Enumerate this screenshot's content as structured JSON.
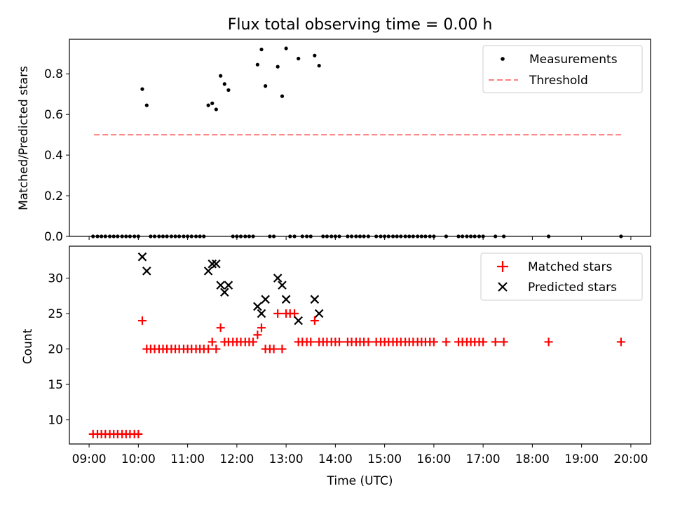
{
  "title": "Flux total observing time = 0.00 h",
  "colors": {
    "matched": "#ff0000",
    "predicted": "#000000",
    "threshold": "#ff7f7f",
    "measurement": "#000000"
  },
  "chart_data": [
    {
      "type": "scatter",
      "ylabel": "Matched/Predicted stars",
      "ylim": [
        0,
        0.97
      ],
      "yticks": [
        0.0,
        0.2,
        0.4,
        0.6,
        0.8
      ],
      "ytick_labels": [
        "0.0",
        "0.2",
        "0.4",
        "0.6",
        "0.8"
      ],
      "legend": {
        "position": "top-right",
        "measurements_label": "Measurements",
        "threshold_label": "Threshold"
      },
      "threshold": {
        "value": 0.5,
        "x_start": 9.1,
        "x_end": 19.8
      },
      "measurements": {
        "x": [
          10.08,
          10.17,
          11.42,
          11.5,
          11.58,
          11.67,
          11.75,
          11.83,
          12.42,
          12.5,
          12.58,
          12.83,
          12.92,
          13.0,
          13.25,
          13.58,
          13.67
        ],
        "y": [
          0.725,
          0.645,
          0.645,
          0.655,
          0.625,
          0.79,
          0.75,
          0.72,
          0.845,
          0.92,
          0.74,
          0.835,
          0.69,
          0.925,
          0.875,
          0.89,
          0.84
        ]
      },
      "zero_measurements_x": [
        9.08,
        9.17,
        9.25,
        9.33,
        9.42,
        9.5,
        9.58,
        9.67,
        9.75,
        9.83,
        9.92,
        10.0,
        10.25,
        10.33,
        10.42,
        10.5,
        10.58,
        10.67,
        10.75,
        10.83,
        10.92,
        11.0,
        11.08,
        11.17,
        11.25,
        11.33,
        11.92,
        12.0,
        12.08,
        12.17,
        12.25,
        12.33,
        12.67,
        12.75,
        13.08,
        13.17,
        13.33,
        13.42,
        13.5,
        13.75,
        13.83,
        13.92,
        14.0,
        14.08,
        14.25,
        14.33,
        14.42,
        14.5,
        14.58,
        14.67,
        14.83,
        14.92,
        15.0,
        15.08,
        15.17,
        15.25,
        15.33,
        15.42,
        15.5,
        15.58,
        15.67,
        15.75,
        15.83,
        15.92,
        16.0,
        16.25,
        16.5,
        16.58,
        16.67,
        16.75,
        16.83,
        16.92,
        17.0,
        17.25,
        17.42,
        18.33,
        19.8
      ]
    },
    {
      "type": "scatter",
      "xlabel": "Time (UTC)",
      "ylabel": "Count",
      "xlim": [
        8.6,
        20.4
      ],
      "xticks": [
        9,
        10,
        11,
        12,
        13,
        14,
        15,
        16,
        17,
        18,
        19,
        20
      ],
      "xtick_labels": [
        "09:00",
        "10:00",
        "11:00",
        "12:00",
        "13:00",
        "14:00",
        "15:00",
        "16:00",
        "17:00",
        "18:00",
        "19:00",
        "20:00"
      ],
      "ylim": [
        6.6,
        34.5
      ],
      "yticks": [
        10,
        15,
        20,
        25,
        30
      ],
      "ytick_labels": [
        "10",
        "15",
        "20",
        "25",
        "30"
      ],
      "legend": {
        "position": "top-right",
        "matched_label": "Matched stars",
        "predicted_label": "Predicted stars"
      },
      "matched": {
        "x": [
          9.08,
          9.17,
          9.25,
          9.33,
          9.42,
          9.5,
          9.58,
          9.67,
          9.75,
          9.83,
          9.92,
          10.0,
          10.08,
          10.17,
          10.25,
          10.33,
          10.42,
          10.5,
          10.58,
          10.67,
          10.75,
          10.83,
          10.92,
          11.0,
          11.08,
          11.17,
          11.25,
          11.33,
          11.42,
          11.5,
          11.58,
          11.67,
          11.75,
          11.83,
          11.92,
          12.0,
          12.08,
          12.17,
          12.25,
          12.33,
          12.42,
          12.5,
          12.58,
          12.67,
          12.75,
          12.83,
          12.92,
          13.0,
          13.08,
          13.17,
          13.25,
          13.33,
          13.42,
          13.5,
          13.58,
          13.67,
          13.75,
          13.83,
          13.92,
          14.0,
          14.08,
          14.25,
          14.33,
          14.42,
          14.5,
          14.58,
          14.67,
          14.83,
          14.92,
          15.0,
          15.08,
          15.17,
          15.25,
          15.33,
          15.42,
          15.5,
          15.58,
          15.67,
          15.75,
          15.83,
          15.92,
          16.0,
          16.25,
          16.5,
          16.58,
          16.67,
          16.75,
          16.83,
          16.92,
          17.0,
          17.25,
          17.42,
          18.33,
          19.8
        ],
        "y": [
          8,
          8,
          8,
          8,
          8,
          8,
          8,
          8,
          8,
          8,
          8,
          8,
          24,
          20,
          20,
          20,
          20,
          20,
          20,
          20,
          20,
          20,
          20,
          20,
          20,
          20,
          20,
          20,
          20,
          21,
          20,
          23,
          21,
          21,
          21,
          21,
          21,
          21,
          21,
          21,
          22,
          23,
          20,
          20,
          20,
          25,
          20,
          25,
          25,
          25,
          21,
          21,
          21,
          21,
          24,
          21,
          21,
          21,
          21,
          21,
          21,
          21,
          21,
          21,
          21,
          21,
          21,
          21,
          21,
          21,
          21,
          21,
          21,
          21,
          21,
          21,
          21,
          21,
          21,
          21,
          21,
          21,
          21,
          21,
          21,
          21,
          21,
          21,
          21,
          21,
          21,
          21,
          21,
          21
        ]
      },
      "predicted": {
        "x": [
          10.08,
          10.17,
          11.42,
          11.5,
          11.58,
          11.67,
          11.75,
          11.83,
          12.42,
          12.5,
          12.58,
          12.83,
          12.92,
          13.0,
          13.25,
          13.58,
          13.67
        ],
        "y": [
          33,
          31,
          31,
          32,
          32,
          29,
          28,
          29,
          26,
          25,
          27,
          30,
          29,
          27,
          24,
          27,
          25
        ]
      }
    }
  ]
}
